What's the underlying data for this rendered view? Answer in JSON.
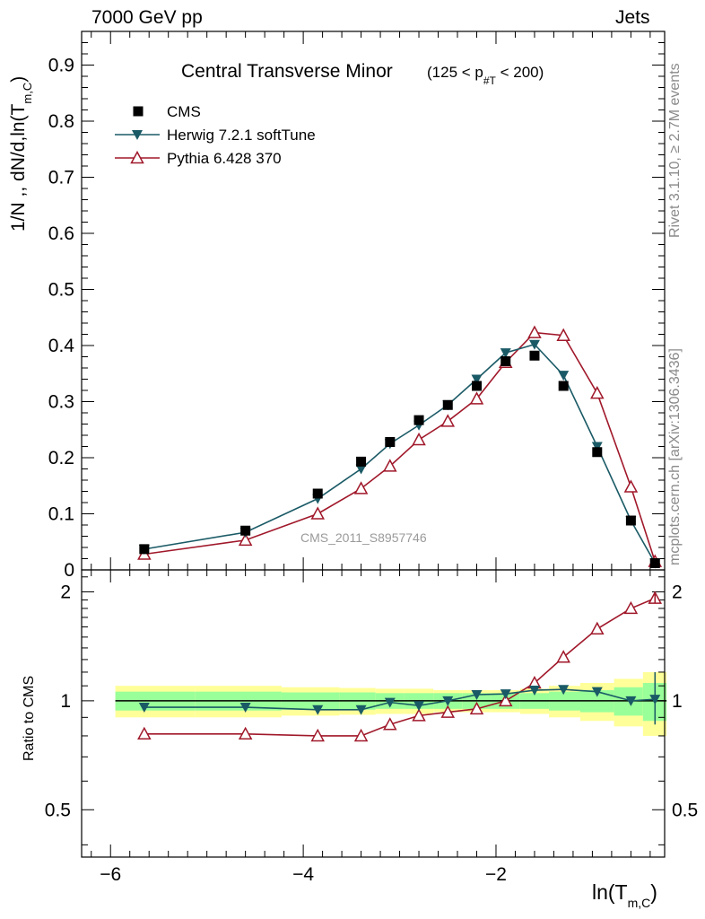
{
  "header": {
    "energy_label": "7000 GeV pp",
    "category_label": "Jets"
  },
  "side_labels": {
    "rivet": "Rivet 3.1.10, ≥ 2.7M events",
    "source": "mcplots.cern.ch [arXiv:1306.3436]"
  },
  "watermark": "CMS_2011_S8957746",
  "colors": {
    "cms": "#000000",
    "herwig": "#1a5a66",
    "pythia": "#a0182a",
    "band_inner": "#99ff99",
    "band_outer": "#ffff99"
  },
  "chart_data": [
    {
      "type": "scatter",
      "panel": "main",
      "title": "Central Transverse Minor",
      "title_selection": "(125 < p",
      "title_selection_sub": "#T",
      "title_selection_tail": " < 200)",
      "ylabel": "1/N ,, dN/d,ln(T",
      "ylabel_sub": "m,C",
      "ylabel_tail": ")",
      "xlim": [
        -6.3,
        -0.25
      ],
      "ylim": [
        0,
        0.96
      ],
      "yticks": [
        "0",
        "0.1",
        "0.2",
        "0.3",
        "0.4",
        "0.5",
        "0.6",
        "0.7",
        "0.8",
        "0.9"
      ],
      "legend_position": "top-left",
      "x": [
        -5.65,
        -4.6,
        -3.85,
        -3.4,
        -3.1,
        -2.8,
        -2.5,
        -2.2,
        -1.9,
        -1.6,
        -1.3,
        -0.95,
        -0.6,
        -0.35
      ],
      "series": [
        {
          "name": "CMS",
          "marker": "square",
          "values": [
            0.037,
            0.07,
            0.136,
            0.193,
            0.228,
            0.267,
            0.294,
            0.328,
            0.372,
            0.382,
            0.328,
            0.21,
            0.088,
            0.012
          ]
        },
        {
          "name": "Herwig 7.2.1 softTune",
          "marker": "triangle-down",
          "values": [
            0.037,
            0.067,
            0.127,
            0.18,
            0.225,
            0.258,
            0.294,
            0.34,
            0.387,
            0.402,
            0.347,
            0.22,
            0.088,
            0.012
          ]
        },
        {
          "name": "Pythia 6.428 370",
          "marker": "triangle-up-open",
          "values": [
            0.028,
            0.053,
            0.1,
            0.145,
            0.185,
            0.232,
            0.265,
            0.305,
            0.37,
            0.423,
            0.418,
            0.315,
            0.148,
            0.015
          ]
        }
      ]
    },
    {
      "type": "line",
      "panel": "ratio",
      "xlabel": "ln(T",
      "xlabel_sub": "m,C",
      "xlabel_tail": ")",
      "ylabel": "Ratio to CMS",
      "xlim": [
        -6.3,
        -0.25
      ],
      "ylim": [
        0.37,
        2.3
      ],
      "yscale": "log",
      "yticks": [
        "0.5",
        "1",
        "2"
      ],
      "xticks": [
        "−6",
        "−4",
        "−2"
      ],
      "x": [
        -5.65,
        -4.6,
        -3.85,
        -3.4,
        -3.1,
        -2.8,
        -2.5,
        -2.2,
        -1.9,
        -1.6,
        -1.3,
        -0.95,
        -0.6,
        -0.35
      ],
      "series": [
        {
          "name": "Herwig 7.2.1 softTune",
          "values": [
            0.96,
            0.96,
            0.945,
            0.945,
            0.99,
            0.97,
            1.0,
            1.04,
            1.045,
            1.07,
            1.075,
            1.06,
            1.0,
            1.01
          ]
        },
        {
          "name": "Pythia 6.428 370",
          "values": [
            0.81,
            0.81,
            0.8,
            0.8,
            0.86,
            0.91,
            0.93,
            0.95,
            1.0,
            1.12,
            1.32,
            1.58,
            1.8,
            1.92
          ]
        }
      ],
      "band_inner": [
        0.06,
        0.06,
        0.055,
        0.055,
        0.05,
        0.05,
        0.05,
        0.05,
        0.05,
        0.05,
        0.06,
        0.07,
        0.09,
        0.12
      ],
      "band_outer": [
        0.1,
        0.1,
        0.09,
        0.085,
        0.08,
        0.08,
        0.07,
        0.07,
        0.07,
        0.08,
        0.1,
        0.12,
        0.15,
        0.2
      ]
    }
  ]
}
